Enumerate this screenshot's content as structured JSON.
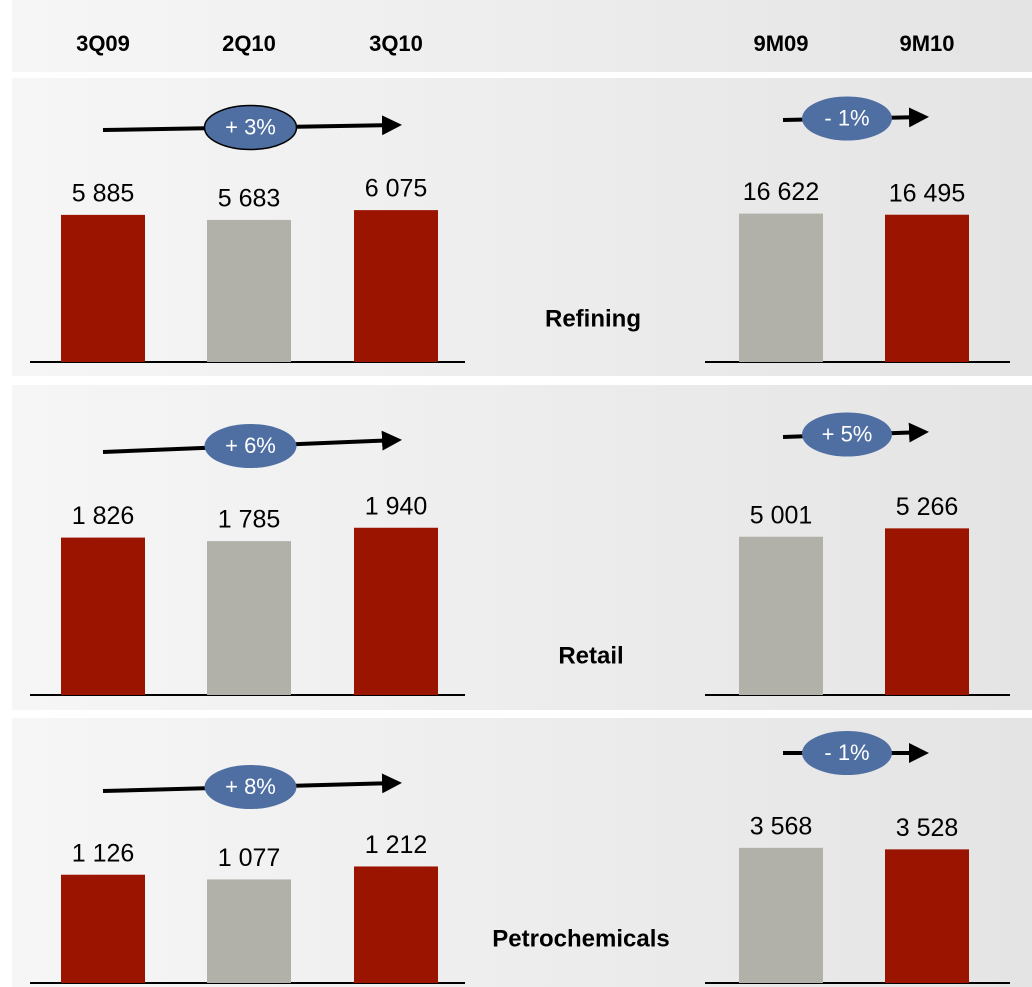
{
  "chart_data": [
    {
      "type": "bar",
      "segment": "Refining",
      "annotation": "+ 3%",
      "categories": [
        "3Q09",
        "2Q10",
        "3Q10"
      ],
      "values": [
        5885,
        5683,
        6075
      ],
      "value_labels": [
        "5 885",
        "5 683",
        "6 075"
      ],
      "colors": [
        "#9b1400",
        "#b1b1a9",
        "#9b1400"
      ],
      "ylim": [
        0,
        10000
      ]
    },
    {
      "type": "bar",
      "annotation": "- 1%",
      "categories": [
        "9M09",
        "9M10"
      ],
      "values": [
        16622,
        16495
      ],
      "value_labels": [
        "16 622",
        "16 495"
      ],
      "colors": [
        "#b1b1a9",
        "#9b1400"
      ],
      "ylim": [
        0,
        28000
      ]
    },
    {
      "type": "bar",
      "segment": "Retail",
      "annotation": "+ 6%",
      "categories": [
        null,
        null,
        null
      ],
      "values": [
        1826,
        1785,
        1940
      ],
      "value_labels": [
        "1 826",
        "1 785",
        "1 940"
      ],
      "colors": [
        "#9b1400",
        "#b1b1a9",
        "#9b1400"
      ],
      "ylim": [
        0,
        2900
      ]
    },
    {
      "type": "bar",
      "annotation": "+ 5%",
      "categories": [
        null,
        null
      ],
      "values": [
        5001,
        5266
      ],
      "value_labels": [
        "5 001",
        "5 266"
      ],
      "colors": [
        "#b1b1a9",
        "#9b1400"
      ],
      "ylim": [
        0,
        7900
      ]
    },
    {
      "type": "bar",
      "segment": "Petrochemicals",
      "annotation": "+ 8%",
      "categories": [
        null,
        null,
        null
      ],
      "values": [
        1126,
        1077,
        1212
      ],
      "value_labels": [
        "1 126",
        "1 077",
        "1 212"
      ],
      "colors": [
        "#9b1400",
        "#b1b1a9",
        "#9b1400"
      ],
      "ylim": [
        0,
        2600
      ]
    },
    {
      "type": "bar",
      "annotation": "- 1%",
      "categories": [
        null,
        null
      ],
      "values": [
        3568,
        3528
      ],
      "value_labels": [
        "3 568",
        "3 528"
      ],
      "colors": [
        "#b1b1a9",
        "#9b1400"
      ],
      "ylim": [
        0,
        6600
      ]
    }
  ]
}
